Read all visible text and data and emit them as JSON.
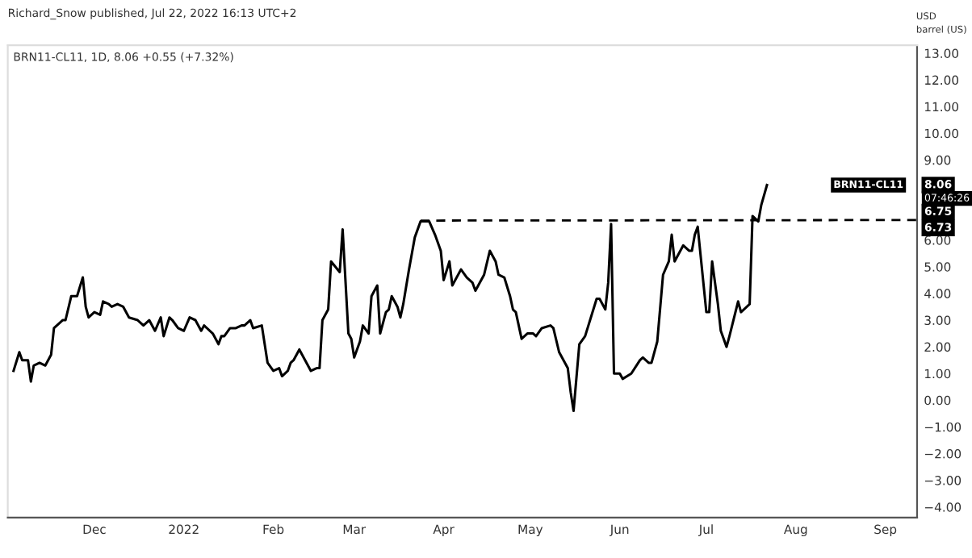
{
  "chart_data": {
    "type": "line",
    "title": "Richard_Snow published, Jul 22, 2022 16:13 UTC+2",
    "subtitle": "BRN11-CL11, 1D, 8.06 +0.55 (+7.32%)",
    "ylabel": "USD\nbarrel (US)",
    "series": [
      {
        "color": "#000000",
        "line_style": "solid",
        "x": [
          "2021-11-03",
          "2021-11-05",
          "2021-11-06",
          "2021-11-08",
          "2021-11-09",
          "2021-11-10",
          "2021-11-12",
          "2021-11-14",
          "2021-11-16",
          "2021-11-17",
          "2021-11-20",
          "2021-11-21",
          "2021-11-23",
          "2021-11-25",
          "2021-11-27",
          "2021-11-28",
          "2021-11-29",
          "2021-12-01",
          "2021-12-03",
          "2021-12-04",
          "2021-12-06",
          "2021-12-07",
          "2021-12-09",
          "2021-12-11",
          "2021-12-13",
          "2021-12-16",
          "2021-12-18",
          "2021-12-20",
          "2021-12-22",
          "2021-12-24",
          "2021-12-25",
          "2021-12-27",
          "2021-12-28",
          "2021-12-30",
          "2022-01-01",
          "2022-01-03",
          "2022-01-05",
          "2022-01-07",
          "2022-01-08",
          "2022-01-11",
          "2022-01-13",
          "2022-01-14",
          "2022-01-15",
          "2022-01-17",
          "2022-01-19",
          "2022-01-21",
          "2022-01-22",
          "2022-01-24",
          "2022-01-25",
          "2022-01-28",
          "2022-01-30",
          "2022-02-01",
          "2022-02-03",
          "2022-02-04",
          "2022-02-06",
          "2022-02-07",
          "2022-02-08",
          "2022-02-10",
          "2022-02-12",
          "2022-02-14",
          "2022-02-16",
          "2022-02-17",
          "2022-02-18",
          "2022-02-20",
          "2022-02-21",
          "2022-02-24",
          "2022-02-25",
          "2022-02-27",
          "2022-02-28",
          "2022-03-01",
          "2022-03-03",
          "2022-03-04",
          "2022-03-06",
          "2022-03-07",
          "2022-03-09",
          "2022-03-10",
          "2022-03-12",
          "2022-03-13",
          "2022-03-14",
          "2022-03-16",
          "2022-03-17",
          "2022-03-18",
          "2022-03-20",
          "2022-03-22",
          "2022-03-24",
          "2022-03-27",
          "2022-03-29",
          "2022-03-31",
          "2022-04-01",
          "2022-04-03",
          "2022-04-04",
          "2022-04-07",
          "2022-04-09",
          "2022-04-11",
          "2022-04-12",
          "2022-04-15",
          "2022-04-17",
          "2022-04-19",
          "2022-04-20",
          "2022-04-22",
          "2022-04-24",
          "2022-04-25",
          "2022-04-26",
          "2022-04-28",
          "2022-04-30",
          "2022-05-02",
          "2022-05-03",
          "2022-05-05",
          "2022-05-08",
          "2022-05-09",
          "2022-05-11",
          "2022-05-14",
          "2022-05-15",
          "2022-05-16",
          "2022-05-18",
          "2022-05-20",
          "2022-05-24",
          "2022-05-25",
          "2022-05-27",
          "2022-05-28",
          "2022-05-29",
          "2022-05-30",
          "2022-06-01",
          "2022-06-02",
          "2022-06-05",
          "2022-06-08",
          "2022-06-09",
          "2022-06-11",
          "2022-06-12",
          "2022-06-14",
          "2022-06-16",
          "2022-06-18",
          "2022-06-19",
          "2022-06-20",
          "2022-06-23",
          "2022-06-25",
          "2022-06-26",
          "2022-06-27",
          "2022-06-28",
          "2022-07-01",
          "2022-07-02",
          "2022-07-03",
          "2022-07-05",
          "2022-07-06",
          "2022-07-08",
          "2022-07-09",
          "2022-07-12",
          "2022-07-13",
          "2022-07-16",
          "2022-07-17",
          "2022-07-19",
          "2022-07-20",
          "2022-07-22"
        ],
        "values": [
          1.1,
          1.8,
          1.5,
          1.5,
          0.7,
          1.3,
          1.4,
          1.3,
          1.7,
          2.7,
          3.0,
          3.0,
          3.9,
          3.9,
          4.6,
          3.5,
          3.1,
          3.3,
          3.2,
          3.7,
          3.6,
          3.5,
          3.6,
          3.5,
          3.1,
          3.0,
          2.8,
          3.0,
          2.6,
          3.1,
          2.4,
          3.1,
          3.0,
          2.7,
          2.6,
          3.1,
          3.0,
          2.6,
          2.8,
          2.5,
          2.1,
          2.4,
          2.4,
          2.7,
          2.7,
          2.8,
          2.8,
          3.0,
          2.7,
          2.8,
          1.4,
          1.1,
          1.2,
          0.9,
          1.1,
          1.4,
          1.5,
          1.9,
          1.5,
          1.1,
          1.2,
          1.2,
          3.0,
          3.4,
          5.2,
          4.8,
          6.4,
          2.5,
          2.3,
          1.6,
          2.2,
          2.8,
          2.5,
          3.9,
          4.3,
          2.5,
          3.3,
          3.4,
          3.9,
          3.5,
          3.1,
          3.6,
          4.9,
          6.1,
          6.7,
          6.7,
          6.2,
          5.6,
          4.5,
          5.2,
          4.3,
          4.9,
          4.6,
          4.4,
          4.1,
          4.7,
          5.6,
          5.2,
          4.7,
          4.6,
          3.9,
          3.4,
          3.3,
          2.3,
          2.5,
          2.5,
          2.4,
          2.7,
          2.8,
          2.7,
          1.8,
          1.2,
          0.3,
          -0.4,
          2.1,
          2.4,
          3.8,
          3.8,
          3.4,
          4.4,
          6.6,
          1.0,
          1.0,
          0.8,
          1.0,
          1.5,
          1.6,
          1.4,
          1.4,
          2.2,
          4.7,
          5.2,
          6.2,
          5.2,
          5.8,
          5.6,
          5.6,
          6.2,
          6.5,
          3.3,
          3.3,
          5.2,
          3.6,
          2.6,
          2.0,
          2.4,
          3.7,
          3.3,
          3.6,
          6.9,
          6.7,
          7.3,
          8.06
        ]
      },
      {
        "color": "#000000",
        "line_style": "dashed",
        "x": [
          "2022-03-24",
          "2022-09-12"
        ],
        "values": [
          6.73,
          6.75
        ],
        "value_labels": [
          null,
          "6.75"
        ]
      }
    ],
    "annotations": [
      "BRN11-CL11",
      {
        "text": "8.06",
        "y": 8.06
      },
      "07:46:26",
      "6.73"
    ],
    "xlim": [
      "2021-11-01",
      "2022-09-12"
    ],
    "xticks": [
      {
        "value": "2021-12-01",
        "label": "Dec"
      },
      {
        "value": "2022-01-01",
        "label": "2022"
      },
      {
        "value": "2022-02-01",
        "label": "Feb"
      },
      {
        "value": "2022-03-01",
        "label": "Mar"
      },
      {
        "value": "2022-04-01",
        "label": "Apr"
      },
      {
        "value": "2022-05-01",
        "label": "May"
      },
      {
        "value": "2022-06-01",
        "label": "Jun"
      },
      {
        "value": "2022-07-01",
        "label": "Jul"
      },
      {
        "value": "2022-08-01",
        "label": "Aug"
      },
      {
        "value": "2022-09-01",
        "label": "Sep"
      }
    ],
    "ylim": [
      -4.4,
      13.3
    ],
    "yticks": [
      {
        "value": -4,
        "label": "−4.00"
      },
      {
        "value": -3,
        "label": "−3.00"
      },
      {
        "value": -2,
        "label": "−2.00"
      },
      {
        "value": -1,
        "label": "−1.00"
      },
      {
        "value": 0,
        "label": "0.00"
      },
      {
        "value": 1,
        "label": "1.00"
      },
      {
        "value": 2,
        "label": "2.00"
      },
      {
        "value": 3,
        "label": "3.00"
      },
      {
        "value": 4,
        "label": "4.00"
      },
      {
        "value": 5,
        "label": "5.00"
      },
      {
        "value": 6,
        "label": "6.00"
      },
      {
        "value": 9,
        "label": "9.00"
      },
      {
        "value": 10,
        "label": "10.00"
      },
      {
        "value": 11,
        "label": "11.00"
      },
      {
        "value": 12,
        "label": "12.00"
      },
      {
        "value": 13,
        "label": "13.00"
      }
    ],
    "grid": false,
    "legend": false,
    "marker": "none"
  }
}
